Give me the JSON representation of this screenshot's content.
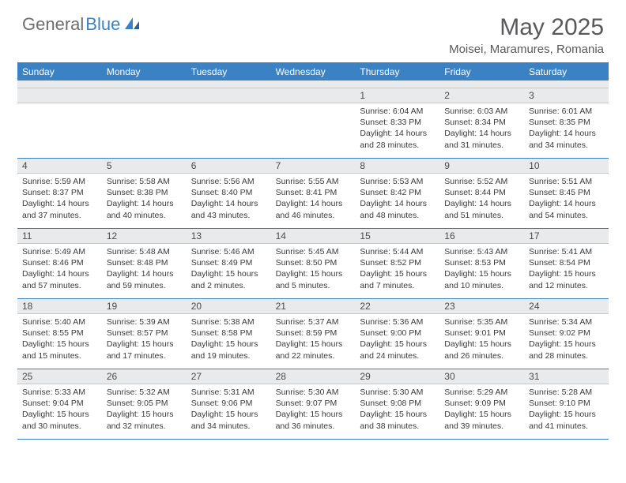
{
  "brand": {
    "part1": "General",
    "part2": "Blue"
  },
  "title": "May 2025",
  "location": "Moisei, Maramures, Romania",
  "colors": {
    "header_bar": "#3b82c4",
    "header_text": "#ffffff",
    "rule": "#3b7fbf",
    "daynum_bg": "#e9eaeb",
    "body_text": "#3a3a3a",
    "title_text": "#58595b",
    "logo_gray": "#6d6e71"
  },
  "weekdays": [
    "Sunday",
    "Monday",
    "Tuesday",
    "Wednesday",
    "Thursday",
    "Friday",
    "Saturday"
  ],
  "weeks": [
    [
      {
        "n": "",
        "sunrise": "",
        "sunset": "",
        "daylight": ""
      },
      {
        "n": "",
        "sunrise": "",
        "sunset": "",
        "daylight": ""
      },
      {
        "n": "",
        "sunrise": "",
        "sunset": "",
        "daylight": ""
      },
      {
        "n": "",
        "sunrise": "",
        "sunset": "",
        "daylight": ""
      },
      {
        "n": "1",
        "sunrise": "Sunrise: 6:04 AM",
        "sunset": "Sunset: 8:33 PM",
        "daylight": "Daylight: 14 hours and 28 minutes."
      },
      {
        "n": "2",
        "sunrise": "Sunrise: 6:03 AM",
        "sunset": "Sunset: 8:34 PM",
        "daylight": "Daylight: 14 hours and 31 minutes."
      },
      {
        "n": "3",
        "sunrise": "Sunrise: 6:01 AM",
        "sunset": "Sunset: 8:35 PM",
        "daylight": "Daylight: 14 hours and 34 minutes."
      }
    ],
    [
      {
        "n": "4",
        "sunrise": "Sunrise: 5:59 AM",
        "sunset": "Sunset: 8:37 PM",
        "daylight": "Daylight: 14 hours and 37 minutes."
      },
      {
        "n": "5",
        "sunrise": "Sunrise: 5:58 AM",
        "sunset": "Sunset: 8:38 PM",
        "daylight": "Daylight: 14 hours and 40 minutes."
      },
      {
        "n": "6",
        "sunrise": "Sunrise: 5:56 AM",
        "sunset": "Sunset: 8:40 PM",
        "daylight": "Daylight: 14 hours and 43 minutes."
      },
      {
        "n": "7",
        "sunrise": "Sunrise: 5:55 AM",
        "sunset": "Sunset: 8:41 PM",
        "daylight": "Daylight: 14 hours and 46 minutes."
      },
      {
        "n": "8",
        "sunrise": "Sunrise: 5:53 AM",
        "sunset": "Sunset: 8:42 PM",
        "daylight": "Daylight: 14 hours and 48 minutes."
      },
      {
        "n": "9",
        "sunrise": "Sunrise: 5:52 AM",
        "sunset": "Sunset: 8:44 PM",
        "daylight": "Daylight: 14 hours and 51 minutes."
      },
      {
        "n": "10",
        "sunrise": "Sunrise: 5:51 AM",
        "sunset": "Sunset: 8:45 PM",
        "daylight": "Daylight: 14 hours and 54 minutes."
      }
    ],
    [
      {
        "n": "11",
        "sunrise": "Sunrise: 5:49 AM",
        "sunset": "Sunset: 8:46 PM",
        "daylight": "Daylight: 14 hours and 57 minutes."
      },
      {
        "n": "12",
        "sunrise": "Sunrise: 5:48 AM",
        "sunset": "Sunset: 8:48 PM",
        "daylight": "Daylight: 14 hours and 59 minutes."
      },
      {
        "n": "13",
        "sunrise": "Sunrise: 5:46 AM",
        "sunset": "Sunset: 8:49 PM",
        "daylight": "Daylight: 15 hours and 2 minutes."
      },
      {
        "n": "14",
        "sunrise": "Sunrise: 5:45 AM",
        "sunset": "Sunset: 8:50 PM",
        "daylight": "Daylight: 15 hours and 5 minutes."
      },
      {
        "n": "15",
        "sunrise": "Sunrise: 5:44 AM",
        "sunset": "Sunset: 8:52 PM",
        "daylight": "Daylight: 15 hours and 7 minutes."
      },
      {
        "n": "16",
        "sunrise": "Sunrise: 5:43 AM",
        "sunset": "Sunset: 8:53 PM",
        "daylight": "Daylight: 15 hours and 10 minutes."
      },
      {
        "n": "17",
        "sunrise": "Sunrise: 5:41 AM",
        "sunset": "Sunset: 8:54 PM",
        "daylight": "Daylight: 15 hours and 12 minutes."
      }
    ],
    [
      {
        "n": "18",
        "sunrise": "Sunrise: 5:40 AM",
        "sunset": "Sunset: 8:55 PM",
        "daylight": "Daylight: 15 hours and 15 minutes."
      },
      {
        "n": "19",
        "sunrise": "Sunrise: 5:39 AM",
        "sunset": "Sunset: 8:57 PM",
        "daylight": "Daylight: 15 hours and 17 minutes."
      },
      {
        "n": "20",
        "sunrise": "Sunrise: 5:38 AM",
        "sunset": "Sunset: 8:58 PM",
        "daylight": "Daylight: 15 hours and 19 minutes."
      },
      {
        "n": "21",
        "sunrise": "Sunrise: 5:37 AM",
        "sunset": "Sunset: 8:59 PM",
        "daylight": "Daylight: 15 hours and 22 minutes."
      },
      {
        "n": "22",
        "sunrise": "Sunrise: 5:36 AM",
        "sunset": "Sunset: 9:00 PM",
        "daylight": "Daylight: 15 hours and 24 minutes."
      },
      {
        "n": "23",
        "sunrise": "Sunrise: 5:35 AM",
        "sunset": "Sunset: 9:01 PM",
        "daylight": "Daylight: 15 hours and 26 minutes."
      },
      {
        "n": "24",
        "sunrise": "Sunrise: 5:34 AM",
        "sunset": "Sunset: 9:02 PM",
        "daylight": "Daylight: 15 hours and 28 minutes."
      }
    ],
    [
      {
        "n": "25",
        "sunrise": "Sunrise: 5:33 AM",
        "sunset": "Sunset: 9:04 PM",
        "daylight": "Daylight: 15 hours and 30 minutes."
      },
      {
        "n": "26",
        "sunrise": "Sunrise: 5:32 AM",
        "sunset": "Sunset: 9:05 PM",
        "daylight": "Daylight: 15 hours and 32 minutes."
      },
      {
        "n": "27",
        "sunrise": "Sunrise: 5:31 AM",
        "sunset": "Sunset: 9:06 PM",
        "daylight": "Daylight: 15 hours and 34 minutes."
      },
      {
        "n": "28",
        "sunrise": "Sunrise: 5:30 AM",
        "sunset": "Sunset: 9:07 PM",
        "daylight": "Daylight: 15 hours and 36 minutes."
      },
      {
        "n": "29",
        "sunrise": "Sunrise: 5:30 AM",
        "sunset": "Sunset: 9:08 PM",
        "daylight": "Daylight: 15 hours and 38 minutes."
      },
      {
        "n": "30",
        "sunrise": "Sunrise: 5:29 AM",
        "sunset": "Sunset: 9:09 PM",
        "daylight": "Daylight: 15 hours and 39 minutes."
      },
      {
        "n": "31",
        "sunrise": "Sunrise: 5:28 AM",
        "sunset": "Sunset: 9:10 PM",
        "daylight": "Daylight: 15 hours and 41 minutes."
      }
    ]
  ]
}
